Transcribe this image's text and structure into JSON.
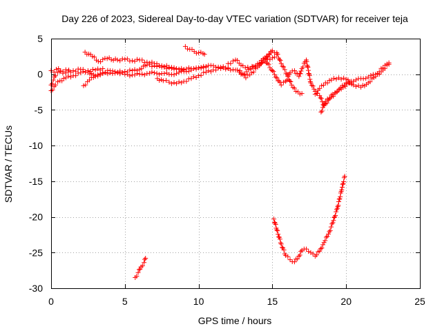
{
  "chart_data": {
    "type": "scatter",
    "title": "Day 226 of 2023, Sidereal Day-to-day VTEC variation (SDTVAR) for receiver teja",
    "xlabel": "GPS time / hours",
    "ylabel": "SDTVAR / TECUs",
    "xlim": [
      0,
      25
    ],
    "ylim": [
      -30,
      5
    ],
    "xticks": [
      0,
      5,
      10,
      15,
      20,
      25
    ],
    "yticks": [
      5,
      0,
      -5,
      -10,
      -15,
      -20,
      -25,
      -30
    ],
    "grid": true,
    "marker": "+",
    "color": "#ff0000",
    "series": [
      {
        "name": "SDTVAR",
        "segments": [
          {
            "x": [
              0.0,
              0.3,
              0.6,
              1.0,
              1.5,
              2.0,
              2.5,
              3.0,
              3.5,
              4.0,
              4.5,
              5.0,
              5.5,
              6.0,
              6.5,
              7.0,
              7.5,
              8.0,
              8.5,
              9.0,
              9.5,
              10.0,
              10.5,
              11.0,
              11.5,
              12.0,
              12.5,
              13.0,
              13.5,
              14.0,
              14.5,
              15.0,
              15.3
            ],
            "y": [
              -1.5,
              -0.2,
              0.4,
              0.2,
              0.5,
              0.7,
              0.3,
              -0.3,
              0.2,
              0.5,
              0.2,
              0.0,
              -0.1,
              0.0,
              0.1,
              0.2,
              0.1,
              0.0,
              0.1,
              0.4,
              0.6,
              0.9,
              1.1,
              1.2,
              1.0,
              0.8,
              0.6,
              0.0,
              0.7,
              1.2,
              1.8,
              2.3,
              2.8
            ]
          },
          {
            "x": [
              0.0,
              0.3,
              0.6,
              1.0,
              1.5,
              2.0,
              2.5,
              3.0,
              3.5
            ],
            "y": [
              -2.3,
              -1.5,
              -0.9,
              -0.5,
              -0.2,
              0.2,
              0.5,
              0.6,
              0.8
            ]
          },
          {
            "x": [
              0.0,
              0.2,
              0.5,
              0.8,
              1.2
            ],
            "y": [
              0.5,
              0.3,
              0.8,
              0.4,
              0.6
            ]
          },
          {
            "x": [
              2.3,
              2.8,
              3.2,
              3.8,
              4.5,
              5.0,
              5.5,
              6.0,
              6.5,
              7.0,
              7.5,
              8.0,
              8.5,
              9.0
            ],
            "y": [
              3.1,
              2.5,
              1.8,
              2.2,
              2.0,
              2.1,
              1.9,
              2.0,
              1.7,
              1.5,
              1.2,
              1.0,
              0.8,
              0.6
            ]
          },
          {
            "x": [
              2.2,
              2.6,
              3.0,
              3.5,
              4.0,
              4.5,
              5.0,
              5.5,
              6.0,
              6.5,
              7.0,
              7.5,
              8.0,
              8.5,
              9.0,
              9.5,
              10.0,
              10.5
            ],
            "y": [
              -1.6,
              -0.8,
              -0.2,
              0.1,
              0.2,
              0.3,
              0.4,
              0.5,
              0.7,
              1.3,
              1.2,
              1.0,
              0.9,
              0.7,
              0.7,
              0.8,
              0.9,
              1.0
            ]
          },
          {
            "x": [
              7.2,
              7.6,
              8.0,
              8.5,
              9.0,
              9.5,
              10.0,
              10.5,
              11.0,
              11.5,
              12.0
            ],
            "y": [
              -0.6,
              -0.9,
              -1.1,
              -1.3,
              -1.0,
              -0.6,
              -0.2,
              0.3,
              0.6,
              0.8,
              0.9
            ]
          },
          {
            "x": [
              9.1,
              9.4,
              9.7,
              10.0,
              10.3,
              10.4
            ],
            "y": [
              3.9,
              3.5,
              3.2,
              3.0,
              2.9,
              2.8
            ]
          },
          {
            "x": [
              12.0,
              12.5,
              13.0,
              13.5,
              14.0,
              14.5,
              15.0,
              15.3,
              15.6,
              16.0,
              16.3,
              16.6,
              17.0
            ],
            "y": [
              1.5,
              2.0,
              1.2,
              0.8,
              1.5,
              2.2,
              3.3,
              3.0,
              1.5,
              0.0,
              -1.5,
              -2.4,
              -2.7
            ]
          },
          {
            "x": [
              12.8,
              13.2,
              13.6,
              14.0,
              14.5,
              14.9
            ],
            "y": [
              0.5,
              -0.5,
              0.2,
              1.0,
              2.3,
              3.0
            ]
          },
          {
            "x": [
              14.5,
              15.0,
              15.3,
              15.6,
              15.9,
              16.2,
              16.5,
              16.8,
              17.0,
              17.3,
              17.6,
              17.9,
              18.2,
              18.5,
              18.8,
              19.1,
              19.5,
              20.0,
              20.5,
              21.0,
              21.5,
              22.0,
              22.5,
              22.9
            ],
            "y": [
              2.0,
              0.5,
              -0.5,
              -1.5,
              -1.0,
              0.2,
              0.5,
              -0.3,
              0.8,
              2.0,
              -1.2,
              -2.4,
              -3.0,
              -4.4,
              -3.6,
              -2.8,
              -2.2,
              -1.2,
              -1.0,
              -0.6,
              -0.4,
              0.0,
              0.9,
              1.6
            ]
          },
          {
            "x": [
              17.9,
              18.2,
              18.6,
              19.0,
              19.5,
              20.0,
              20.5,
              21.0,
              21.5,
              22.0,
              22.5,
              22.9
            ],
            "y": [
              -2.8,
              -2.0,
              -1.2,
              -0.8,
              -0.5,
              -0.7,
              -1.5,
              -1.8,
              -1.2,
              -0.3,
              0.6,
              1.4
            ]
          },
          {
            "x": [
              18.3,
              18.6,
              19.0,
              19.4,
              19.8,
              20.2,
              20.5
            ],
            "y": [
              -5.3,
              -3.8,
              -3.2,
              -2.4,
              -1.8,
              -1.2,
              -1.0
            ]
          },
          {
            "x": [
              15.1,
              15.3,
              15.6,
              15.9,
              16.2,
              16.5,
              16.8,
              17.0,
              17.3,
              17.6,
              17.9,
              18.2,
              18.5,
              18.8,
              19.1,
              19.4,
              19.7,
              19.9
            ],
            "y": [
              -20.3,
              -21.8,
              -23.8,
              -25.4,
              -26.0,
              -26.3,
              -25.5,
              -24.7,
              -24.5,
              -25.0,
              -25.5,
              -24.8,
              -23.6,
              -22.4,
              -20.8,
              -18.8,
              -16.2,
              -14.3
            ]
          },
          {
            "x": [
              5.7,
              5.9,
              6.1,
              6.3,
              6.4
            ],
            "y": [
              -28.5,
              -27.8,
              -27.0,
              -26.4,
              -25.8
            ]
          }
        ]
      }
    ]
  }
}
